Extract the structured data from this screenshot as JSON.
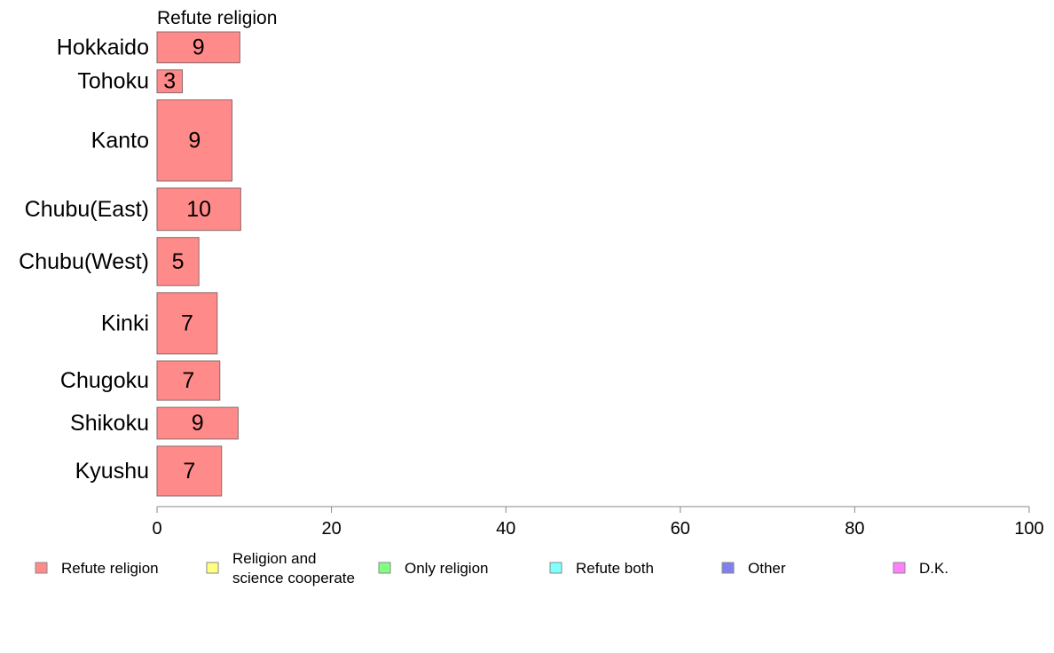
{
  "chart_data": {
    "type": "bar",
    "orientation": "horizontal",
    "series_title": "Refute religion",
    "categories": [
      "Hokkaido",
      "Tohoku",
      "Kanto",
      "Chubu(East)",
      "Chubu(West)",
      "Kinki",
      "Chugoku",
      "Shikoku",
      "Kyushu"
    ],
    "category_weights": [
      0.7,
      0.52,
      1.84,
      0.96,
      1.09,
      1.39,
      0.89,
      0.72,
      1.13
    ],
    "series": [
      {
        "name": "Refute religion",
        "values": [
          9.5,
          2.9,
          8.6,
          9.6,
          4.8,
          6.9,
          7.2,
          9.3,
          7.4
        ],
        "labels": [
          "9",
          "3",
          "9",
          "10",
          "5",
          "7",
          "7",
          "9",
          "7"
        ]
      }
    ],
    "xlim": [
      0,
      100
    ],
    "xticks": [
      "0",
      "20",
      "40",
      "60",
      "80",
      "100"
    ],
    "grid": false,
    "legend_position": "bottom",
    "legend": [
      {
        "label": "Refute religion",
        "color": "#ff8a8a"
      },
      {
        "label": "Religion and|science cooperate",
        "color": "#ffff80"
      },
      {
        "label": "Only religion",
        "color": "#80ff80"
      },
      {
        "label": "Refute both",
        "color": "#80ffff"
      },
      {
        "label": "Other",
        "color": "#8080ee"
      },
      {
        "label": "D.K.",
        "color": "#ff80ff"
      }
    ],
    "bar_color": "#ff8a8a",
    "bar_border_color": "#8a6a6a",
    "axis_color": "#888888"
  }
}
